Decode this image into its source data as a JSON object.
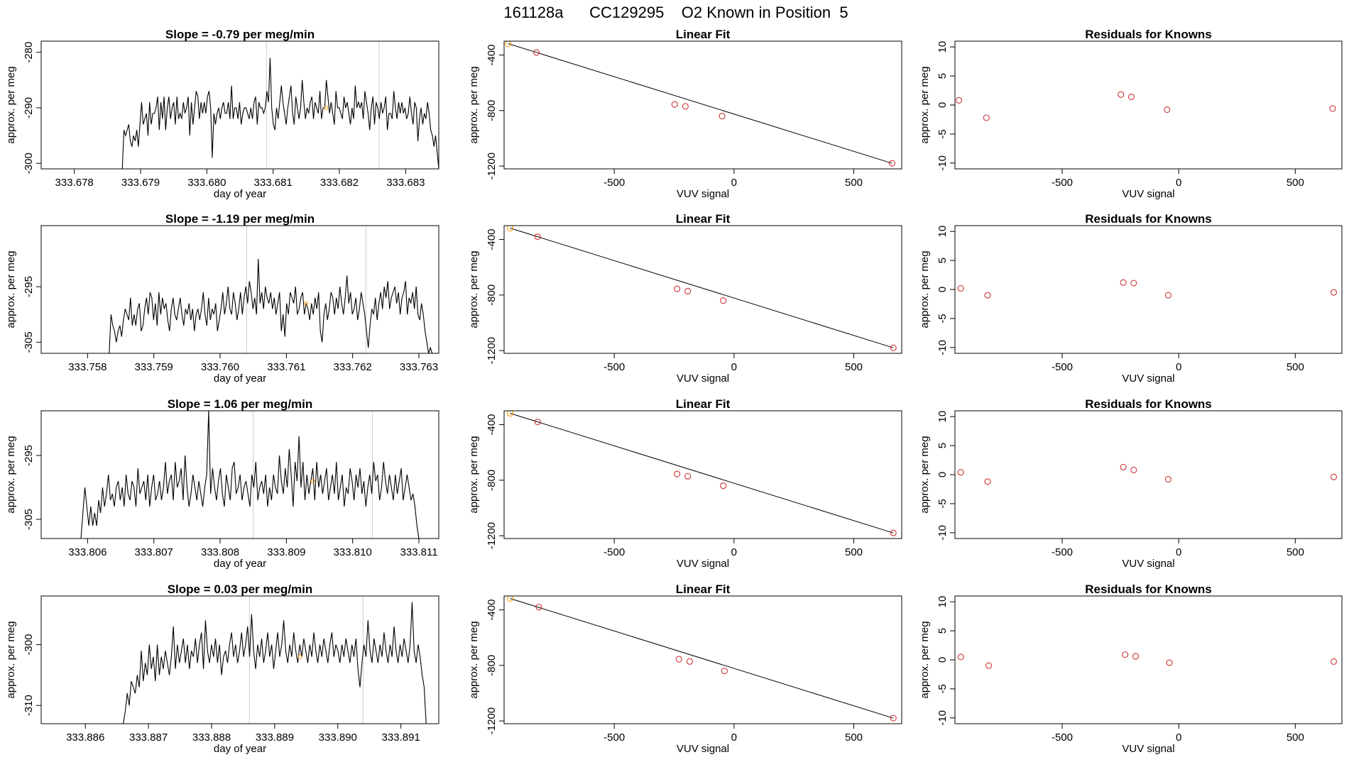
{
  "page_title": "161128a      CC129295    O2 Known in Position  5",
  "colors": {
    "line": "#000000",
    "point": "#cc3333",
    "highlight": "#ff9900",
    "marker": "#cccccc"
  },
  "time_xlabel": "day of year",
  "time_ylabel": "approx. per meg",
  "fit_title": "Linear Fit",
  "fit_xlabel": "VUV signal",
  "fit_ylabel": "approx. per meg",
  "res_title": "Residuals for Knowns",
  "res_xlabel": "VUV signal",
  "res_ylabel": "approx. per meg",
  "chart_data": [
    {
      "type": "line",
      "title": "Slope =  -0.79  per meg/min",
      "xlim": [
        333.6775,
        333.6835
      ],
      "ylim": [
        -301,
        -278
      ],
      "xticks": [
        "333.678",
        "333.679",
        "333.680",
        "333.681",
        "333.682",
        "333.683"
      ],
      "yticks": [
        "-280",
        "-290",
        "-300"
      ],
      "series_start": 333.6787,
      "series_end": 333.6835,
      "values": [
        -301,
        -301,
        -294,
        -295,
        -294,
        -293,
        -296,
        -297,
        -295,
        -296,
        -294,
        -297,
        -293,
        -289,
        -293,
        -292,
        -291,
        -295,
        -289,
        -293,
        -291,
        -291,
        -290,
        -288,
        -294,
        -289,
        -292,
        -288,
        -294,
        -290,
        -288,
        -292,
        -290,
        -289,
        -293,
        -288,
        -292,
        -291,
        -292,
        -289,
        -291,
        -290,
        -288,
        -295,
        -289,
        -293,
        -290,
        -287,
        -288,
        -292,
        -289,
        -291,
        -289,
        -291,
        -288,
        -287,
        -290,
        -299,
        -291,
        -293,
        -291,
        -290,
        -292,
        -290,
        -289,
        -291,
        -291,
        -289,
        -292,
        -286,
        -292,
        -290,
        -290,
        -292,
        -289,
        -293,
        -291,
        -290,
        -290,
        -291,
        -292,
        -290,
        -292,
        -289,
        -288,
        -293,
        -289,
        -290,
        -290,
        -291,
        -290,
        -287,
        -289,
        -281,
        -290,
        -293,
        -294,
        -290,
        -292,
        -289,
        -286,
        -289,
        -291,
        -293,
        -290,
        -288,
        -286,
        -291,
        -293,
        -288,
        -290,
        -292,
        -290,
        -285,
        -289,
        -292,
        -290,
        -291,
        -289,
        -288,
        -292,
        -289,
        -290,
        -291,
        -287,
        -292,
        -290,
        -290,
        -285,
        -288,
        -291,
        -289,
        -291,
        -293,
        -287,
        -290,
        -290,
        -291,
        -292,
        -288,
        -290,
        -289,
        -291,
        -293,
        -290,
        -292,
        -286,
        -290,
        -289,
        -290,
        -289,
        -292,
        -287,
        -289,
        -291,
        -294,
        -290,
        -288,
        -293,
        -289,
        -290,
        -292,
        -289,
        -291,
        -290,
        -288,
        -294,
        -291,
        -291,
        -292,
        -287,
        -290,
        -292,
        -289,
        -291,
        -289,
        -291,
        -290,
        -292,
        -291,
        -288,
        -291,
        -293,
        -289,
        -290,
        -296,
        -292,
        -290,
        -293,
        -291,
        -292,
        -289,
        -291,
        -294,
        -295,
        -297,
        -295,
        -298,
        -301
      ],
      "marker_x": [
        333.6809,
        333.6826
      ],
      "highlight": [
        333.6818,
        -290
      ]
    },
    {
      "type": "scatter",
      "title": "Linear Fit",
      "xlim": [
        -960,
        700
      ],
      "ylim": [
        -1220,
        -300
      ],
      "xticks": [
        -500,
        0,
        500
      ],
      "yticks": [
        -400,
        -800,
        -1200
      ],
      "x": [
        -943,
        -825,
        -248,
        -203,
        -50,
        660
      ],
      "y": [
        -318,
        -382,
        -756,
        -770,
        -840,
        -1180
      ],
      "highlight_index": 0,
      "fit_line": [
        [
          -943,
          -318
        ],
        [
          660,
          -1180
        ]
      ]
    },
    {
      "type": "scatter",
      "title": "Residuals for Knowns",
      "xlim": [
        -960,
        700
      ],
      "ylim": [
        -11,
        11
      ],
      "xticks": [
        -500,
        0,
        500
      ],
      "yticks": [
        10,
        5,
        0,
        -5,
        -10
      ],
      "x": [
        -943,
        -825,
        -248,
        -203,
        -50,
        660
      ],
      "y": [
        0.8,
        -2.2,
        1.8,
        1.4,
        -0.8,
        -0.6
      ]
    },
    {
      "type": "line",
      "title": "Slope =  -1.19  per meg/min",
      "xlim": [
        333.7573,
        333.7633
      ],
      "ylim": [
        -307,
        -284
      ],
      "xticks": [
        "333.758",
        "333.759",
        "333.760",
        "333.761",
        "333.762",
        "333.763"
      ],
      "yticks": [
        "-295",
        "-305"
      ],
      "series_start": 333.7583,
      "series_end": 333.7632,
      "values": [
        -307,
        -307,
        -300,
        -302,
        -303,
        -305,
        -303,
        -302,
        -304,
        -301,
        -299,
        -300,
        -301,
        -297,
        -302,
        -300,
        -302,
        -299,
        -298,
        -303,
        -302,
        -299,
        -297,
        -300,
        -296,
        -297,
        -301,
        -298,
        -302,
        -296,
        -300,
        -297,
        -299,
        -298,
        -301,
        -303,
        -299,
        -297,
        -300,
        -301,
        -299,
        -297,
        -300,
        -302,
        -299,
        -300,
        -298,
        -301,
        -299,
        -303,
        -300,
        -299,
        -301,
        -299,
        -296,
        -300,
        -302,
        -297,
        -301,
        -299,
        -300,
        -298,
        -303,
        -301,
        -299,
        -296,
        -300,
        -298,
        -295,
        -299,
        -300,
        -296,
        -298,
        -301,
        -299,
        -296,
        -300,
        -297,
        -295,
        -298,
        -294,
        -296,
        -299,
        -297,
        -300,
        -290,
        -298,
        -296,
        -299,
        -295,
        -297,
        -298,
        -296,
        -299,
        -297,
        -300,
        -298,
        -296,
        -303,
        -300,
        -304,
        -298,
        -300,
        -296,
        -297,
        -298,
        -295,
        -300,
        -299,
        -297,
        -296,
        -300,
        -298,
        -299,
        -301,
        -298,
        -300,
        -297,
        -299,
        -296,
        -303,
        -305,
        -300,
        -298,
        -301,
        -299,
        -296,
        -297,
        -300,
        -297,
        -299,
        -295,
        -298,
        -300,
        -297,
        -293,
        -298,
        -296,
        -300,
        -299,
        -297,
        -301,
        -299,
        -296,
        -298,
        -300,
        -303,
        -306,
        -302,
        -299,
        -300,
        -297,
        -301,
        -298,
        -296,
        -299,
        -295,
        -297,
        -294,
        -299,
        -297,
        -296,
        -295,
        -298,
        -296,
        -300,
        -297,
        -296,
        -294,
        -300,
        -297,
        -298,
        -296,
        -299,
        -295,
        -300,
        -301,
        -298,
        -300,
        -303,
        -305,
        -307,
        -306,
        -307
      ],
      "marker_x": [
        333.7604,
        333.7622
      ],
      "highlight": [
        333.7613,
        -298
      ]
    },
    {
      "type": "scatter",
      "title": "Linear Fit",
      "xlim": [
        -960,
        700
      ],
      "ylim": [
        -1220,
        -300
      ],
      "xticks": [
        -500,
        0,
        500
      ],
      "yticks": [
        -400,
        -800,
        -1200
      ],
      "x": [
        -935,
        -820,
        -238,
        -193,
        -45,
        665
      ],
      "y": [
        -318,
        -380,
        -755,
        -772,
        -840,
        -1180
      ],
      "highlight_index": 0,
      "fit_line": [
        [
          -935,
          -318
        ],
        [
          665,
          -1180
        ]
      ]
    },
    {
      "type": "scatter",
      "title": "Residuals for Knowns",
      "xlim": [
        -960,
        700
      ],
      "ylim": [
        -11,
        11
      ],
      "xticks": [
        -500,
        0,
        500
      ],
      "yticks": [
        10,
        5,
        0,
        -5,
        -10
      ],
      "x": [
        -935,
        -820,
        -238,
        -193,
        -45,
        665
      ],
      "y": [
        0.2,
        -1.0,
        1.2,
        1.1,
        -1.0,
        -0.5
      ]
    },
    {
      "type": "line",
      "title": "Slope =  1.06  per meg/min",
      "xlim": [
        333.8053,
        333.8113
      ],
      "ylim": [
        -308,
        -288
      ],
      "xticks": [
        "333.806",
        "333.807",
        "333.808",
        "333.809",
        "333.810",
        "333.811"
      ],
      "yticks": [
        "-295",
        "-305"
      ],
      "series_start": 333.8059,
      "series_end": 333.811,
      "values": [
        -308,
        -304,
        -300,
        -303,
        -306,
        -303,
        -306,
        -304,
        -306,
        -302,
        -304,
        -300,
        -303,
        -301,
        -298,
        -302,
        -301,
        -303,
        -300,
        -299,
        -302,
        -300,
        -303,
        -298,
        -301,
        -302,
        -299,
        -300,
        -303,
        -297,
        -301,
        -300,
        -299,
        -302,
        -298,
        -303,
        -300,
        -298,
        -302,
        -301,
        -299,
        -302,
        -300,
        -296,
        -301,
        -299,
        -298,
        -302,
        -296,
        -300,
        -299,
        -297,
        -302,
        -295,
        -300,
        -303,
        -301,
        -298,
        -300,
        -302,
        -299,
        -301,
        -303,
        -300,
        -298,
        -288,
        -301,
        -297,
        -300,
        -302,
        -299,
        -297,
        -301,
        -303,
        -298,
        -300,
        -302,
        -297,
        -296,
        -301,
        -300,
        -298,
        -302,
        -300,
        -299,
        -301,
        -303,
        -298,
        -300,
        -296,
        -302,
        -300,
        -299,
        -301,
        -298,
        -303,
        -300,
        -302,
        -298,
        -300,
        -301,
        -295,
        -299,
        -301,
        -297,
        -300,
        -294,
        -298,
        -303,
        -296,
        -299,
        -292,
        -300,
        -296,
        -302,
        -298,
        -301,
        -299,
        -297,
        -302,
        -296,
        -300,
        -298,
        -301,
        -299,
        -297,
        -302,
        -300,
        -298,
        -301,
        -296,
        -302,
        -300,
        -298,
        -303,
        -300,
        -301,
        -297,
        -299,
        -302,
        -298,
        -300,
        -297,
        -301,
        -299,
        -303,
        -300,
        -298,
        -301,
        -296,
        -299,
        -298,
        -302,
        -300,
        -296,
        -299,
        -301,
        -298,
        -300,
        -302,
        -298,
        -301,
        -299,
        -297,
        -302,
        -300,
        -298,
        -300,
        -302,
        -301,
        -303,
        -306,
        -308
      ],
      "marker_x": [
        333.8085,
        333.8103
      ],
      "highlight": [
        333.8094,
        -299
      ]
    },
    {
      "type": "scatter",
      "title": "Linear Fit",
      "xlim": [
        -960,
        700
      ],
      "ylim": [
        -1220,
        -300
      ],
      "xticks": [
        -500,
        0,
        500
      ],
      "yticks": [
        -400,
        -800,
        -1200
      ],
      "x": [
        -935,
        -820,
        -238,
        -193,
        -45,
        665
      ],
      "y": [
        -318,
        -380,
        -755,
        -772,
        -840,
        -1180
      ],
      "highlight_index": 0,
      "fit_line": [
        [
          -935,
          -318
        ],
        [
          665,
          -1180
        ]
      ]
    },
    {
      "type": "scatter",
      "title": "Residuals for Knowns",
      "xlim": [
        -960,
        700
      ],
      "ylim": [
        -11,
        11
      ],
      "xticks": [
        -500,
        0,
        500
      ],
      "yticks": [
        10,
        5,
        0,
        -5,
        -10
      ],
      "x": [
        -935,
        -820,
        -238,
        -193,
        -45,
        665
      ],
      "y": [
        0.4,
        -1.2,
        1.3,
        0.8,
        -0.8,
        -0.4
      ]
    },
    {
      "type": "line",
      "title": "Slope =  0.03  per meg/min",
      "xlim": [
        333.8853,
        333.8916
      ],
      "ylim": [
        -313,
        -292
      ],
      "xticks": [
        "333.886",
        "333.887",
        "333.888",
        "333.889",
        "333.890",
        "333.891"
      ],
      "yticks": [
        "-300",
        "-310"
      ],
      "series_start": 333.8866,
      "series_end": 333.8914,
      "values": [
        -313,
        -311,
        -308,
        -310,
        -306,
        -307,
        -308,
        -305,
        -307,
        -301,
        -306,
        -303,
        -305,
        -300,
        -304,
        -302,
        -306,
        -300,
        -305,
        -302,
        -304,
        -301,
        -303,
        -305,
        -302,
        -297,
        -304,
        -300,
        -303,
        -301,
        -299,
        -303,
        -300,
        -304,
        -301,
        -302,
        -299,
        -303,
        -300,
        -298,
        -304,
        -296,
        -301,
        -303,
        -300,
        -302,
        -299,
        -303,
        -300,
        -305,
        -302,
        -301,
        -303,
        -300,
        -298,
        -302,
        -300,
        -303,
        -301,
        -298,
        -302,
        -300,
        -297,
        -302,
        -295,
        -301,
        -304,
        -300,
        -302,
        -299,
        -303,
        -301,
        -298,
        -302,
        -300,
        -304,
        -301,
        -298,
        -302,
        -300,
        -296,
        -301,
        -303,
        -300,
        -302,
        -298,
        -301,
        -303,
        -300,
        -302,
        -299,
        -301,
        -303,
        -300,
        -302,
        -298,
        -301,
        -303,
        -300,
        -302,
        -299,
        -301,
        -303,
        -300,
        -298,
        -302,
        -300,
        -301,
        -303,
        -300,
        -302,
        -299,
        -301,
        -303,
        -300,
        -302,
        -299,
        -304,
        -307,
        -303,
        -300,
        -302,
        -296,
        -301,
        -303,
        -299,
        -301,
        -303,
        -300,
        -302,
        -298,
        -301,
        -303,
        -300,
        -302,
        -297,
        -301,
        -303,
        -300,
        -302,
        -299,
        -301,
        -303,
        -300,
        -293,
        -301,
        -303,
        -300,
        -302,
        -305,
        -307,
        -313
      ],
      "marker_x": [
        333.8886,
        333.8904
      ],
      "highlight": [
        333.8894,
        -302
      ]
    },
    {
      "type": "scatter",
      "title": "Linear Fit",
      "xlim": [
        -960,
        700
      ],
      "ylim": [
        -1220,
        -300
      ],
      "xticks": [
        -500,
        0,
        500
      ],
      "yticks": [
        -400,
        -800,
        -1200
      ],
      "x": [
        -935,
        -815,
        -230,
        -185,
        -40,
        665
      ],
      "y": [
        -318,
        -380,
        -755,
        -772,
        -840,
        -1180
      ],
      "highlight_index": 0,
      "fit_line": [
        [
          -935,
          -318
        ],
        [
          665,
          -1180
        ]
      ]
    },
    {
      "type": "scatter",
      "title": "Residuals for Knowns",
      "xlim": [
        -960,
        700
      ],
      "ylim": [
        -11,
        11
      ],
      "xticks": [
        -500,
        0,
        500
      ],
      "yticks": [
        10,
        5,
        0,
        -5,
        -10
      ],
      "x": [
        -935,
        -815,
        -230,
        -185,
        -40,
        665
      ],
      "y": [
        0.5,
        -1.0,
        0.9,
        0.6,
        -0.5,
        -0.3
      ]
    }
  ]
}
